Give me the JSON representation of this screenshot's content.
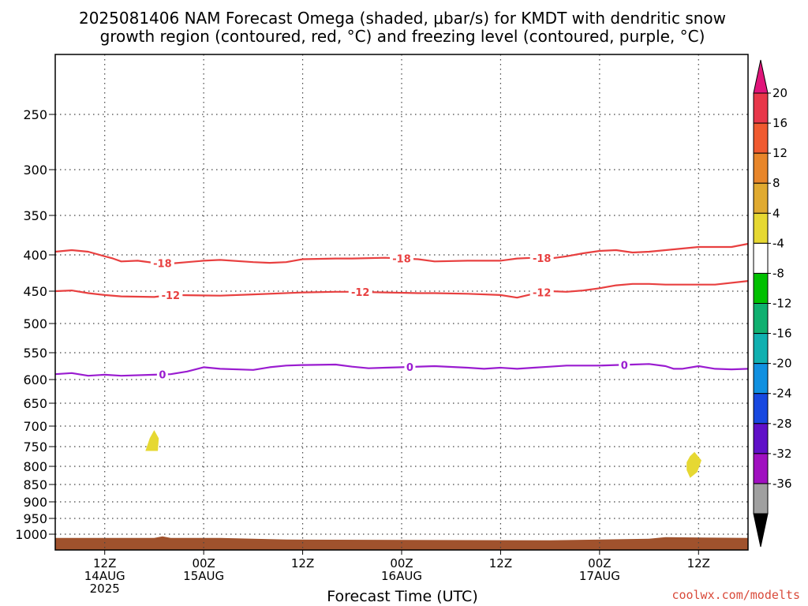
{
  "chart_data": {
    "type": "contour",
    "title_line1": "2025081406 NAM Forecast Omega (shaded, μbar/s) for KMDT with dendritic snow",
    "title_line2": "growth region (contoured, red, °C) and freezing level (contoured, purple, °C)",
    "xlabel": "Forecast Time (UTC)",
    "credit": "coolwx.com/modelts",
    "x_hours_range": [
      0,
      84
    ],
    "y_pressure_levels": [
      "250",
      "300",
      "350",
      "400",
      "450",
      "500",
      "550",
      "600",
      "650",
      "700",
      "750",
      "800",
      "850",
      "900",
      "950",
      "1000"
    ],
    "x_ticks": [
      {
        "hour": 6,
        "line1": "12Z",
        "line2": "14AUG",
        "line3": "2025"
      },
      {
        "hour": 18,
        "line1": "00Z",
        "line2": "15AUG",
        "line3": ""
      },
      {
        "hour": 30,
        "line1": "12Z",
        "line2": "",
        "line3": ""
      },
      {
        "hour": 42,
        "line1": "00Z",
        "line2": "16AUG",
        "line3": ""
      },
      {
        "hour": 54,
        "line1": "12Z",
        "line2": "",
        "line3": ""
      },
      {
        "hour": 66,
        "line1": "00Z",
        "line2": "17AUG",
        "line3": ""
      },
      {
        "hour": 78,
        "line1": "12Z",
        "line2": "",
        "line3": ""
      }
    ],
    "colorbar": {
      "labels": [
        "20",
        "16",
        "12",
        "8",
        "4",
        "-4",
        "-8",
        "-12",
        "-16",
        "-20",
        "-24",
        "-28",
        "-32",
        "-36"
      ],
      "bins": [
        {
          "color": "#e8374a"
        },
        {
          "color": "#f05a30"
        },
        {
          "color": "#e8862a"
        },
        {
          "color": "#e0aa30"
        },
        {
          "color": "#e6d832"
        },
        {
          "color": "#ffffff"
        },
        {
          "color": "#00c000"
        },
        {
          "color": "#10b070"
        },
        {
          "color": "#10b0b0"
        },
        {
          "color": "#1090e0"
        },
        {
          "color": "#1848e0"
        },
        {
          "color": "#6010c8"
        },
        {
          "color": "#a010c0"
        },
        {
          "color": "#a0a0a0"
        }
      ],
      "top_arrow_color": "#e0157a",
      "bottom_arrow_color": "#000000"
    },
    "contours": [
      {
        "label": "-18",
        "color": "#e84040",
        "label_hours": [
          13,
          42,
          59
        ],
        "points": [
          [
            0,
            396
          ],
          [
            2,
            394
          ],
          [
            4,
            396
          ],
          [
            6,
            402
          ],
          [
            7,
            405
          ],
          [
            8,
            409
          ],
          [
            10,
            408
          ],
          [
            12,
            411
          ],
          [
            14,
            412
          ],
          [
            16,
            410
          ],
          [
            18,
            408
          ],
          [
            20,
            407
          ],
          [
            24,
            410
          ],
          [
            26,
            411
          ],
          [
            28,
            410
          ],
          [
            30,
            406
          ],
          [
            34,
            405
          ],
          [
            36,
            405
          ],
          [
            40,
            404
          ],
          [
            44,
            406
          ],
          [
            46,
            409
          ],
          [
            50,
            408
          ],
          [
            54,
            408
          ],
          [
            56,
            405
          ],
          [
            58,
            404
          ],
          [
            60,
            405
          ],
          [
            62,
            402
          ],
          [
            64,
            398
          ],
          [
            66,
            395
          ],
          [
            68,
            394
          ],
          [
            70,
            397
          ],
          [
            72,
            396
          ],
          [
            76,
            392
          ],
          [
            78,
            390
          ],
          [
            82,
            390
          ],
          [
            84,
            386
          ]
        ]
      },
      {
        "label": "-12",
        "color": "#e84040",
        "label_hours": [
          14,
          37,
          59
        ],
        "points": [
          [
            0,
            450
          ],
          [
            2,
            449
          ],
          [
            4,
            453
          ],
          [
            6,
            456
          ],
          [
            8,
            458
          ],
          [
            12,
            459
          ],
          [
            14,
            456
          ],
          [
            20,
            457
          ],
          [
            24,
            455
          ],
          [
            30,
            452
          ],
          [
            34,
            451
          ],
          [
            36,
            451
          ],
          [
            40,
            452
          ],
          [
            44,
            453
          ],
          [
            46,
            453
          ],
          [
            50,
            454
          ],
          [
            54,
            456
          ],
          [
            56,
            460
          ],
          [
            58,
            454
          ],
          [
            60,
            450
          ],
          [
            62,
            451
          ],
          [
            64,
            449
          ],
          [
            66,
            446
          ],
          [
            68,
            442
          ],
          [
            70,
            440
          ],
          [
            72,
            440
          ],
          [
            74,
            441
          ],
          [
            76,
            441
          ],
          [
            80,
            441
          ],
          [
            84,
            436
          ]
        ]
      },
      {
        "label": "0",
        "color": "#9a1cd0",
        "label_hours": [
          13,
          43,
          69
        ],
        "points": [
          [
            0,
            590
          ],
          [
            2,
            588
          ],
          [
            4,
            593
          ],
          [
            6,
            591
          ],
          [
            8,
            593
          ],
          [
            12,
            591
          ],
          [
            14,
            590
          ],
          [
            16,
            585
          ],
          [
            18,
            577
          ],
          [
            20,
            580
          ],
          [
            24,
            582
          ],
          [
            26,
            577
          ],
          [
            28,
            574
          ],
          [
            30,
            573
          ],
          [
            34,
            572
          ],
          [
            36,
            576
          ],
          [
            38,
            579
          ],
          [
            40,
            578
          ],
          [
            42,
            577
          ],
          [
            46,
            575
          ],
          [
            50,
            578
          ],
          [
            52,
            580
          ],
          [
            54,
            578
          ],
          [
            56,
            580
          ],
          [
            58,
            578
          ],
          [
            60,
            576
          ],
          [
            62,
            574
          ],
          [
            66,
            574
          ],
          [
            68,
            573
          ],
          [
            70,
            572
          ],
          [
            72,
            571
          ],
          [
            74,
            575
          ],
          [
            75,
            580
          ],
          [
            76,
            580
          ],
          [
            78,
            575
          ],
          [
            80,
            580
          ],
          [
            82,
            581
          ],
          [
            84,
            580
          ]
        ]
      }
    ],
    "shaded_regions": [
      {
        "color": "#e6d832",
        "points": [
          [
            11,
            760
          ],
          [
            11.5,
            730
          ],
          [
            12,
            712
          ],
          [
            12.5,
            730
          ],
          [
            12.4,
            760
          ]
        ]
      },
      {
        "color": "#e6d832",
        "points": [
          [
            76.6,
            790
          ],
          [
            77,
            775
          ],
          [
            77.5,
            765
          ],
          [
            78.3,
            785
          ],
          [
            77.8,
            815
          ],
          [
            77,
            830
          ],
          [
            76.6,
            810
          ]
        ]
      }
    ],
    "ground_color": "#a0522d"
  }
}
